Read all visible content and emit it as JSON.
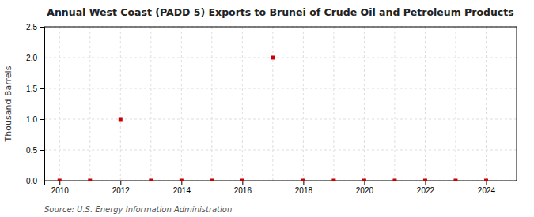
{
  "chart_data": {
    "type": "scatter",
    "title": "Annual West Coast (PADD 5) Exports to Brunei of Crude Oil and Petroleum Products",
    "y_label": "Thousand Barrels",
    "annotations": [
      "Source: U.S. Energy Information Administration"
    ],
    "x": [
      2010,
      2011,
      2012,
      2013,
      2014,
      2015,
      2016,
      2017,
      2018,
      2019,
      2020,
      2021,
      2022,
      2023,
      2024
    ],
    "values": [
      0.0,
      0.0,
      1.0,
      0.0,
      0.0,
      0.0,
      0.0,
      2.0,
      0.0,
      0.0,
      0.0,
      0.0,
      0.0,
      0.0,
      0.0
    ],
    "color": "#cc0000",
    "marker": "square",
    "xlim": [
      2009.5,
      2025.0
    ],
    "xticks": [
      2010,
      2012,
      2014,
      2016,
      2018,
      2020,
      2022,
      2024
    ],
    "xticks_minor": [
      2011,
      2013,
      2015,
      2017,
      2019,
      2021,
      2023
    ],
    "ylim": [
      0.0,
      2.5
    ],
    "yticks": [
      {
        "value": 0.0,
        "label": "0.0"
      },
      0.5,
      {
        "value": 1.0,
        "label": "1.0"
      },
      1.5,
      {
        "value": 2.0,
        "label": "2.0"
      },
      2.5
    ],
    "grid": true
  }
}
